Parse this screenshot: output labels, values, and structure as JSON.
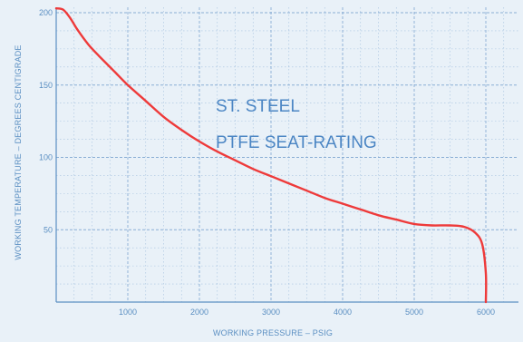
{
  "chart_data": {
    "type": "line",
    "title": "",
    "xlabel": "WORKING PRESSURE – PSIG",
    "ylabel": "WORKING TEMPERATURE – DEGREES CENTIGRADE",
    "xlim": [
      0,
      6000
    ],
    "ylim": [
      0,
      200
    ],
    "x_ticks": [
      1000,
      2000,
      3000,
      4000,
      5000,
      6000
    ],
    "y_ticks": [
      50,
      100,
      150,
      200
    ],
    "x_tick_labels": [
      "1000",
      "2000",
      "3000",
      "4000",
      "5000",
      "6000"
    ],
    "y_tick_labels": [
      "50",
      "100",
      "150",
      "200"
    ],
    "grid": true,
    "annotations": [
      "ST. STEEL",
      "PTFE SEAT-RATING"
    ],
    "colors": {
      "line": "#ee3a3a",
      "grid": "#7aa3cf",
      "axis": "#5b8fc2",
      "text": "#4c86c4",
      "background": "#e9f1f8"
    },
    "series": [
      {
        "x": [
          0,
          100,
          200,
          300,
          450,
          600,
          800,
          1000,
          1250,
          1500,
          1750,
          2000,
          2250,
          2500,
          2750,
          3000,
          3250,
          3500,
          3750,
          4000,
          4250,
          4500,
          4750,
          5000,
          5250,
          5500,
          5700,
          5850,
          5950,
          6000,
          6000
        ],
        "y": [
          203,
          202,
          196,
          188,
          178,
          170,
          160,
          150,
          139,
          128,
          119,
          111,
          104,
          98,
          92,
          87,
          82,
          77,
          72,
          68,
          64,
          60,
          57,
          54,
          53,
          53,
          52,
          48,
          40,
          20,
          0
        ]
      }
    ]
  }
}
